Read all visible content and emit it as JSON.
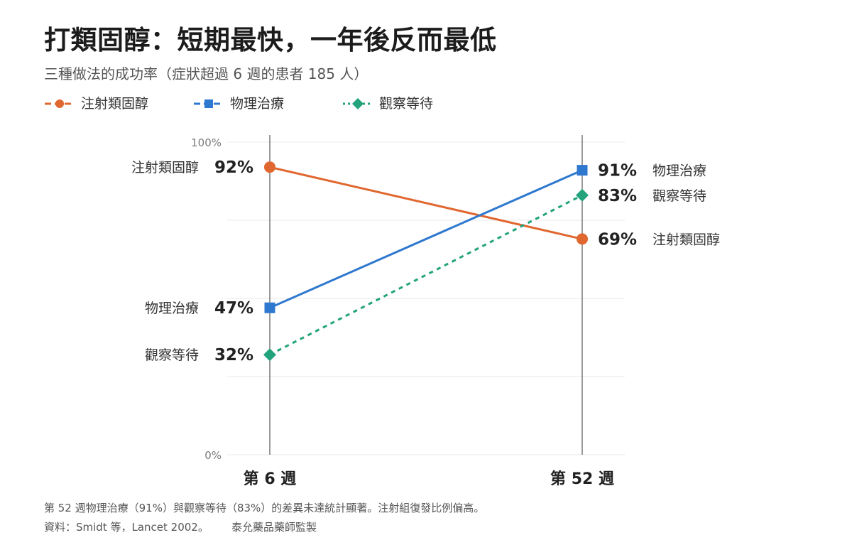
{
  "title": "打類固醇：短期最快，一年後反而最低",
  "subtitle": "三種做法的成功率（症狀超過 6 週的患者 185 人）",
  "legend": [
    {
      "label": "注射類固醇",
      "color": "#e0672f",
      "marker": "circle",
      "dash": "solid"
    },
    {
      "label": "物理治療",
      "color": "#2f78cf",
      "marker": "square",
      "dash": "solid"
    },
    {
      "label": "觀察等待",
      "color": "#22a37b",
      "marker": "diamond",
      "dash": "dotted"
    }
  ],
  "chart_data": {
    "type": "line",
    "x": [
      "第 6 週",
      "第 52 週"
    ],
    "ylim": [
      0,
      100
    ],
    "yticks": [
      {
        "value": 0,
        "label": "0%"
      },
      {
        "value": 100,
        "label": "100%"
      }
    ],
    "gridlines": [
      25,
      50,
      75
    ],
    "series": [
      {
        "name": "注射類固醇",
        "values": [
          92,
          69
        ],
        "value_labels": [
          "92%",
          "69%"
        ],
        "color": "#e0672f",
        "marker": "circle",
        "dash": "solid"
      },
      {
        "name": "物理治療",
        "values": [
          47,
          91
        ],
        "value_labels": [
          "47%",
          "91%"
        ],
        "color": "#2f78cf",
        "marker": "square",
        "dash": "solid"
      },
      {
        "name": "觀察等待",
        "values": [
          32,
          83
        ],
        "value_labels": [
          "32%",
          "83%"
        ],
        "color": "#22a37b",
        "marker": "diamond",
        "dash": "dotted"
      }
    ]
  },
  "footnote": "第 52 週物理治療（91%）與觀察等待（83%）的差異未達統計顯著。注射組復發比例偏高。",
  "source": "資料：Smidt 等，Lancet 2002。",
  "credit": "泰允藥品藥師監製"
}
